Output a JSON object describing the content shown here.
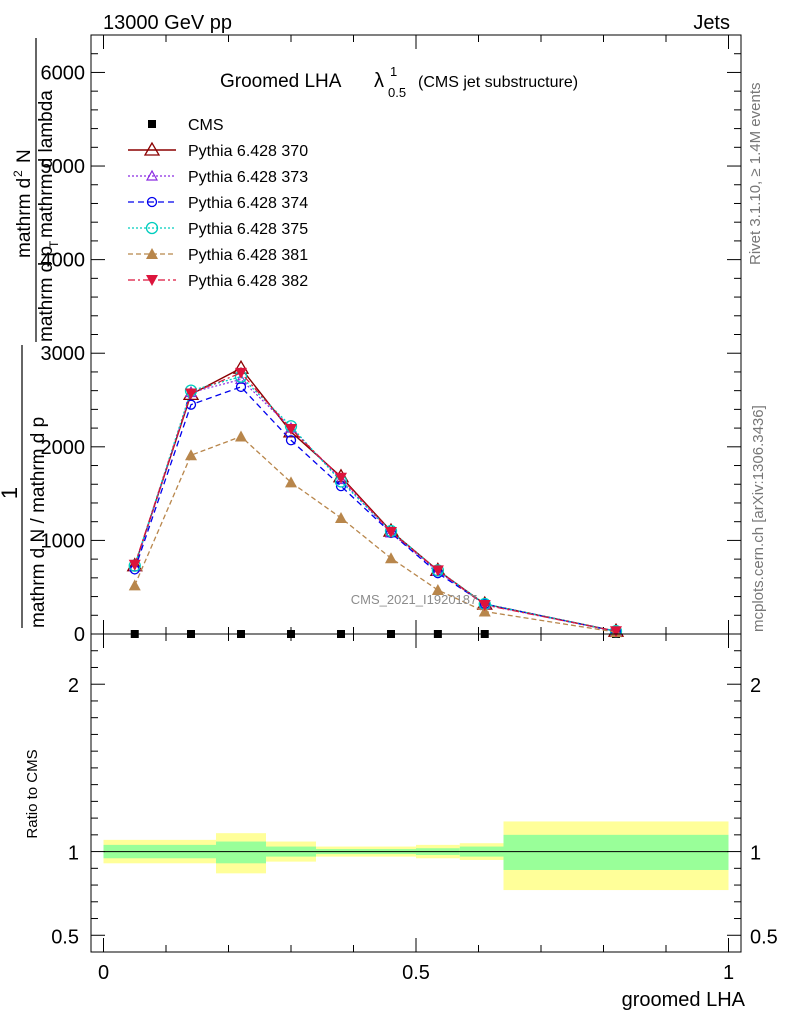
{
  "header": {
    "energy_label": "13000 GeV pp",
    "category_label": "Jets",
    "plot_title": "Groomed LHA",
    "plot_title_symbol": "λ",
    "plot_title_sup": "1",
    "plot_title_sub": "0.5",
    "plot_title_suffix": "(CMS jet substructure)",
    "watermark": "CMS_2021_I1920187",
    "side_rivet": "Rivet 3.1.10, ≥ 1.4M events",
    "side_mcplots": "mcplots.cern.ch [arXiv:1306.3436]"
  },
  "ylabel_parts": {
    "frac_num": "1",
    "frac_den": "mathrm d N / mathrm d p",
    "frac2_num": "mathrm d",
    "frac2_num_sup": "2",
    "frac2_num_tail": "N",
    "frac2_den": "mathrm d p",
    "frac2_den_sub": "T",
    "frac2_den_tail": " mathrm d lambda"
  },
  "colors": {
    "cms": "#000000",
    "p370": "#8b0000",
    "p373": "#8a2be2",
    "p374": "#0000ee",
    "p375": "#00cdbe",
    "p381": "#b8864b",
    "p382": "#dc143c",
    "band_outer": "#ffff99",
    "band_inner": "#99ff99"
  },
  "chart_data": [
    {
      "type": "line",
      "panel": "main",
      "xlim": [
        -0.02,
        1.02
      ],
      "ylim": [
        0,
        6400
      ],
      "yticks": [
        0,
        1000,
        2000,
        3000,
        4000,
        5000,
        6000
      ],
      "ytick_labels": [
        "0",
        "1000",
        "2000",
        "3000",
        "4000",
        "5000",
        "6000"
      ],
      "ylabel": "1 / mathrm d N / mathrm d p mathrm d^2N / mathrm d p_T mathrm d lambda",
      "x": [
        0.05,
        0.14,
        0.22,
        0.3,
        0.38,
        0.46,
        0.535,
        0.61,
        0.82
      ],
      "series": [
        {
          "name": "CMS",
          "marker": "square",
          "values": [
            0,
            0,
            0,
            0,
            0,
            0,
            0,
            0,
            0
          ]
        },
        {
          "name": "Pythia 6.428 370",
          "marker": "open-triangle",
          "values": [
            730,
            2560,
            2840,
            2160,
            1680,
            1100,
            680,
            320,
            30
          ]
        },
        {
          "name": "Pythia 6.428 373",
          "marker": "open-triangle-small",
          "values": [
            720,
            2580,
            2720,
            2200,
            1650,
            1080,
            670,
            315,
            28
          ]
        },
        {
          "name": "Pythia 6.428 374",
          "marker": "open-circle",
          "values": [
            690,
            2450,
            2640,
            2070,
            1580,
            1080,
            650,
            320,
            28
          ]
        },
        {
          "name": "Pythia 6.428 375",
          "marker": "open-circle-large",
          "values": [
            730,
            2600,
            2750,
            2220,
            1630,
            1100,
            680,
            320,
            30
          ]
        },
        {
          "name": "Pythia 6.428 381",
          "marker": "filled-triangle",
          "values": [
            520,
            1910,
            2110,
            1620,
            1240,
            810,
            470,
            240,
            20
          ]
        },
        {
          "name": "Pythia 6.428 382",
          "marker": "filled-inverted-triangle",
          "values": [
            740,
            2570,
            2790,
            2190,
            1670,
            1090,
            680,
            310,
            30
          ]
        }
      ]
    },
    {
      "type": "area",
      "panel": "ratio",
      "xlim": [
        -0.02,
        1.02
      ],
      "ylim": [
        0.4,
        2.3
      ],
      "yticks": [
        0.5,
        1,
        2
      ],
      "ytick_labels": [
        "0.5",
        "1",
        "2"
      ],
      "xticks": [
        0,
        0.5,
        1
      ],
      "xtick_labels": [
        "0",
        "0.5",
        "1"
      ],
      "ylabel": "Ratio to CMS",
      "xlabel": "groomed LHA",
      "reference": 1,
      "bins": [
        {
          "x0": 0.0,
          "x1": 0.18,
          "outer": [
            0.93,
            1.07
          ],
          "inner": [
            0.96,
            1.04
          ]
        },
        {
          "x0": 0.18,
          "x1": 0.26,
          "outer": [
            0.87,
            1.11
          ],
          "inner": [
            0.93,
            1.06
          ]
        },
        {
          "x0": 0.26,
          "x1": 0.34,
          "outer": [
            0.94,
            1.06
          ],
          "inner": [
            0.97,
            1.03
          ]
        },
        {
          "x0": 0.34,
          "x1": 0.5,
          "outer": [
            0.97,
            1.03
          ],
          "inner": [
            0.985,
            1.015
          ]
        },
        {
          "x0": 0.5,
          "x1": 0.57,
          "outer": [
            0.96,
            1.04
          ],
          "inner": [
            0.98,
            1.02
          ]
        },
        {
          "x0": 0.57,
          "x1": 0.64,
          "outer": [
            0.95,
            1.05
          ],
          "inner": [
            0.97,
            1.03
          ]
        },
        {
          "x0": 0.64,
          "x1": 1.0,
          "outer": [
            0.77,
            1.18
          ],
          "inner": [
            0.89,
            1.1
          ]
        }
      ]
    }
  ]
}
